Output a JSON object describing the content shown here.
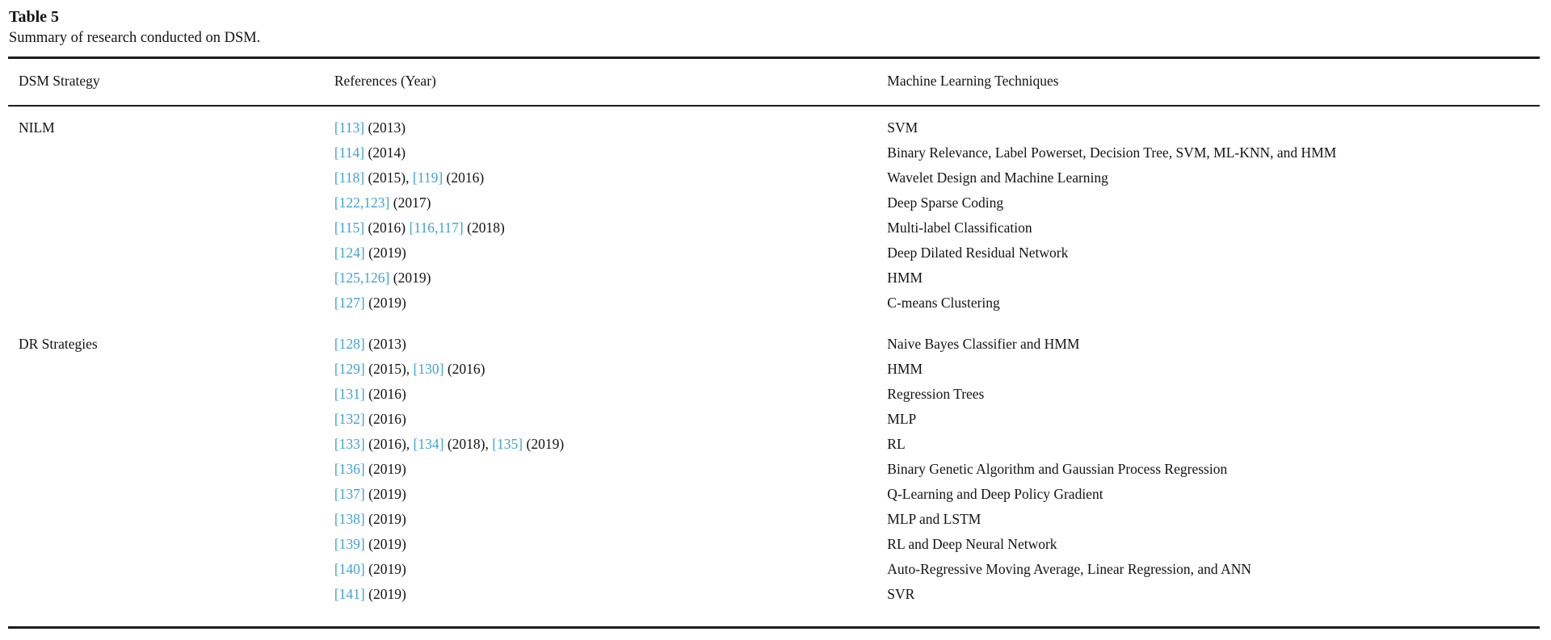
{
  "colors": {
    "link": "#3fa2d4",
    "text": "#131313",
    "rule": "#1c1c1c",
    "background": "#ffffff"
  },
  "table": {
    "label": "Table 5",
    "caption": "Summary of research conducted on DSM.",
    "columns": [
      "DSM Strategy",
      "References (Year)",
      "Machine Learning Techniques"
    ],
    "groups": [
      {
        "strategy": "NILM",
        "rows": [
          {
            "references": [
              {
                "ref": "[113]",
                "year": "(2013)",
                "sep": ""
              }
            ],
            "technique": "SVM"
          },
          {
            "references": [
              {
                "ref": "[114]",
                "year": "(2014)",
                "sep": ""
              }
            ],
            "technique": "Binary Relevance, Label Powerset, Decision Tree, SVM, ML-KNN, and HMM"
          },
          {
            "references": [
              {
                "ref": "[118]",
                "year": "(2015)",
                "sep": ", "
              },
              {
                "ref": "[119]",
                "year": "(2016)",
                "sep": ""
              }
            ],
            "technique": "Wavelet Design and Machine Learning"
          },
          {
            "references": [
              {
                "ref": "[122,123]",
                "year": "(2017)",
                "sep": ""
              }
            ],
            "technique": "Deep Sparse Coding"
          },
          {
            "references": [
              {
                "ref": "[115]",
                "year": "(2016)",
                "sep": " "
              },
              {
                "ref": "[116,117]",
                "year": "(2018)",
                "sep": ""
              }
            ],
            "technique": "Multi-label Classification"
          },
          {
            "references": [
              {
                "ref": "[124]",
                "year": "(2019)",
                "sep": ""
              }
            ],
            "technique": "Deep Dilated Residual Network"
          },
          {
            "references": [
              {
                "ref": "[125,126]",
                "year": "(2019)",
                "sep": ""
              }
            ],
            "technique": "HMM"
          },
          {
            "references": [
              {
                "ref": "[127]",
                "year": "(2019)",
                "sep": ""
              }
            ],
            "technique": "C-means Clustering"
          }
        ]
      },
      {
        "strategy": "DR Strategies",
        "rows": [
          {
            "references": [
              {
                "ref": "[128]",
                "year": "(2013)",
                "sep": ""
              }
            ],
            "technique": "Naive Bayes Classifier and HMM"
          },
          {
            "references": [
              {
                "ref": "[129]",
                "year": "(2015)",
                "sep": ", "
              },
              {
                "ref": "[130]",
                "year": "(2016)",
                "sep": ""
              }
            ],
            "technique": "HMM"
          },
          {
            "references": [
              {
                "ref": "[131]",
                "year": "(2016)",
                "sep": ""
              }
            ],
            "technique": "Regression Trees"
          },
          {
            "references": [
              {
                "ref": "[132]",
                "year": "(2016)",
                "sep": ""
              }
            ],
            "technique": "MLP"
          },
          {
            "references": [
              {
                "ref": "[133]",
                "year": "(2016)",
                "sep": ", "
              },
              {
                "ref": "[134]",
                "year": "(2018)",
                "sep": ", "
              },
              {
                "ref": "[135]",
                "year": "(2019)",
                "sep": ""
              }
            ],
            "technique": "RL"
          },
          {
            "references": [
              {
                "ref": "[136]",
                "year": "(2019)",
                "sep": ""
              }
            ],
            "technique": "Binary Genetic Algorithm and Gaussian Process Regression"
          },
          {
            "references": [
              {
                "ref": "[137]",
                "year": "(2019)",
                "sep": ""
              }
            ],
            "technique": "Q-Learning and Deep Policy Gradient"
          },
          {
            "references": [
              {
                "ref": "[138]",
                "year": "(2019)",
                "sep": ""
              }
            ],
            "technique": "MLP and LSTM"
          },
          {
            "references": [
              {
                "ref": "[139]",
                "year": "(2019)",
                "sep": ""
              }
            ],
            "technique": "RL and Deep Neural Network"
          },
          {
            "references": [
              {
                "ref": "[140]",
                "year": "(2019)",
                "sep": ""
              }
            ],
            "technique": "Auto-Regressive Moving Average, Linear Regression, and ANN"
          },
          {
            "references": [
              {
                "ref": "[141]",
                "year": "(2019)",
                "sep": ""
              }
            ],
            "technique": "SVR"
          }
        ]
      }
    ]
  }
}
